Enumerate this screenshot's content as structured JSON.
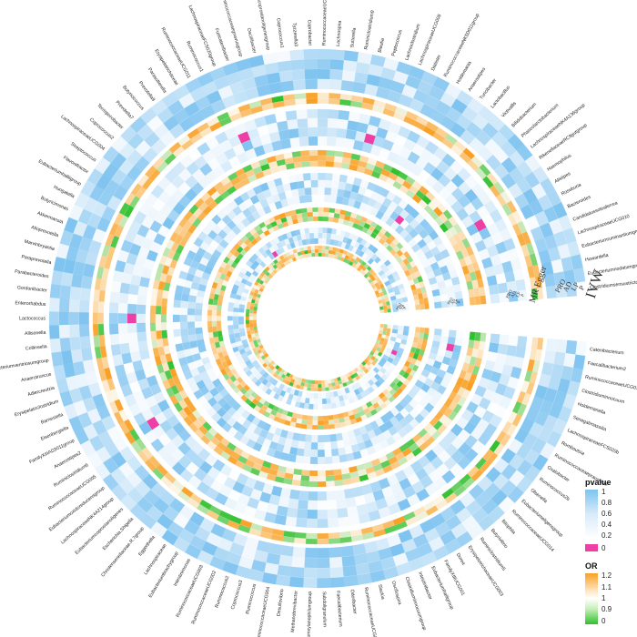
{
  "chart_data": {
    "type": "heatmap",
    "layout": "circular",
    "methods": [
      {
        "name": "IVW",
        "metrics": [
          "pvalue",
          "OR"
        ]
      },
      {
        "name": "MR Egger",
        "metrics": [
          "pvalue",
          "OR"
        ]
      },
      {
        "name": "Weighted median",
        "metrics": [
          "pvalue",
          "OR"
        ]
      },
      {
        "name": "Weighted mode",
        "metrics": [
          "pvalue",
          "OR"
        ]
      }
    ],
    "ring_method_labels": [
      "IVW",
      "MR Egger",
      "",
      ""
    ],
    "ring_row_labels": [
      "P",
      "LP",
      "AD",
      "PRO"
    ],
    "ring_row_labels_note": [
      "",
      "",
      "",
      ""
    ],
    "taxa": [
      "Clostridiumsensustricto1",
      "Eubacteriumnodatumgroup",
      "Howardella",
      "Eubacteriumruminantiumgroup",
      "LachnospiraceaeUCG010",
      "Candidatussoleaferrea",
      "Bacteroides",
      "Roseburia",
      "Alistipes",
      "Haemophilus",
      "RikenellaceaeRC9gutgroup",
      "LachnospiraceaeNK4A136group",
      "Phascolarctobacterium",
      "Bifidobacterium",
      "Victivallis",
      "Lactobacillus",
      "Turicibacter",
      "Anaerostipes",
      "Holdemania",
      "RuminococcaceaeNK5D011group",
      "Dialister",
      "LachnospiraceaeUCG008",
      "Lachnoclostridium",
      "Peptococcus",
      "Blautia",
      "Ruminiclostridium9",
      "Sutterella",
      "Lachnospira",
      "RuminococcaceaeUCG013",
      "Coprobacter",
      "Tyzzerella3",
      "Coprococcus1",
      "Eubacteriumcoprostanoligenesgroup",
      "Oscillibacter",
      "Ruminococcaceaegnavusgroup",
      "Fusicatenibacter",
      "LachnospiraceaeFCS020group",
      "Ruminococcus1",
      "RuminococcaceaeUCG011",
      "Erysipelotrichaceae",
      "Parasutterella",
      "Prevotella9",
      "Butyricicoccus",
      "Prevotella7",
      "Terrisporobacter",
      "Coprococcus2",
      "LachnospiraceaeUCG004",
      "Streptococcus",
      "Flavonifractor",
      "Eubacteriumhalliigroup",
      "Hungatella",
      "Butyricimonas",
      "Akkermansia",
      "Alloprevotella",
      "Marvinbryantia",
      "Paraprevotella",
      "Parabacteroides",
      "Gordonibacter",
      "Enterorhabdus",
      "Lactococcus",
      "Allisonella",
      "Collinsella",
      "Eubacteriumventriosumgroup",
      "Anaerotruncus",
      "Adlercreutzia",
      "Erysipelatoclostridium",
      "Barnesiella",
      "Eisenbergiella",
      "FamilyXIIIAD3011group",
      "Anaerostipes2",
      "Ruminiclostridium6",
      "RuminococcaceaeUCG005",
      "Eubacteriumoxidoreducensgroup",
      "LachnospiraceaeNK4A214group",
      "Eubacteriumcoprostanoligenes",
      "Escherichia.Shigella",
      "Christensenellaceae.R.7group",
      "Eggerthella",
      "Lachnospiraceae",
      "Eubacteriumbrachygroup",
      "Intestinimonas",
      "RuminococcaceaeUCG003",
      "RuminococcaceaeUCG002",
      "Ruminococcus2",
      "Coprococcus3",
      "Ruminococcus",
      "RuminococcaceaeUCG004",
      "Desulfovibrio",
      "Methanobrevibacter",
      "Eubacteriumxylanophilumgroup",
      "Subdoligranulum",
      "Faecalibacterium",
      "Odoribacter",
      "RuminococcaceaeUCG009",
      "Slackia",
      "Oscillospira",
      "Clostridiuminnocuumgroup",
      "Intestinibacter",
      "Eubacteriumhalligroup",
      "FamilyXIIIUCG001",
      "Dorea",
      "ErysipelotrichaceaeUCG003",
      "Ruminiclostridium5",
      "Butyrivibrio",
      "Bilophila",
      "RuminococcaceaeUCG014",
      "Eubacteriumeligensgroup",
      "Olsenella",
      "Ruminococcus2b",
      "Oxalobacter",
      "Ruminococcaceaeprausnitzii",
      "Romboutsia",
      "LachnospiraceaeFCS020b",
      "Senegalimassilia",
      "Holdemanella",
      "Clostridiuminnocuum",
      "RuminococcaceaeUCG010",
      "Faecalibacterium2",
      "Catenibacterium"
    ],
    "legends": [
      {
        "title": "pvalue",
        "ticks": [
          "1",
          "0.8",
          "0.6",
          "0.4",
          "0.2",
          "0"
        ]
      },
      {
        "title": "OR",
        "ticks": [
          "1.2",
          "1.1",
          "1",
          "0.9",
          "0"
        ]
      }
    ],
    "pvalue_range": [
      0,
      1
    ],
    "or_range": [
      0,
      1.2
    ],
    "colors": {
      "pvalue_high": "#7ec3f0",
      "pvalue_mid": "#eaf4fc",
      "pvalue_low": "#ffffff",
      "pvalue_sig": "#ee3fa5",
      "or_high": "#f9a024",
      "or_mid": "#fdf6e8",
      "or_low": "#2ec02e"
    }
  }
}
